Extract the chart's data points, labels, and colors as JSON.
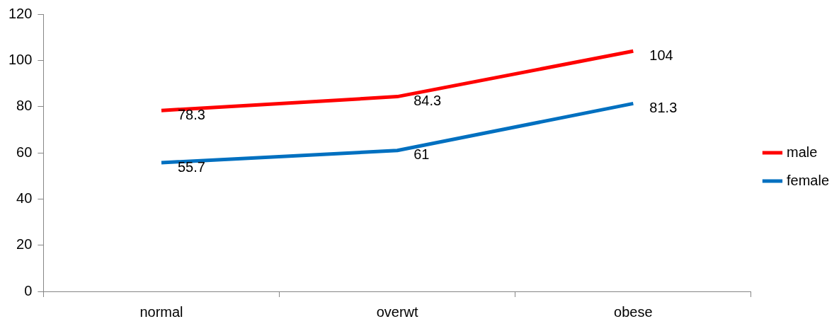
{
  "chart_data": {
    "type": "line",
    "categories": [
      "normal",
      "overwt",
      "obese"
    ],
    "series": [
      {
        "name": "male",
        "color": "#ff0000",
        "values": [
          78.3,
          84.3,
          104
        ]
      },
      {
        "name": "female",
        "color": "#0070c0",
        "values": [
          55.7,
          61,
          81.3
        ]
      }
    ],
    "ylim": [
      0,
      120
    ],
    "yticks": [
      0,
      20,
      40,
      60,
      80,
      100,
      120
    ],
    "grid": false,
    "legend": "right",
    "marker": "none",
    "line_style": "solid",
    "data_labels": true
  }
}
